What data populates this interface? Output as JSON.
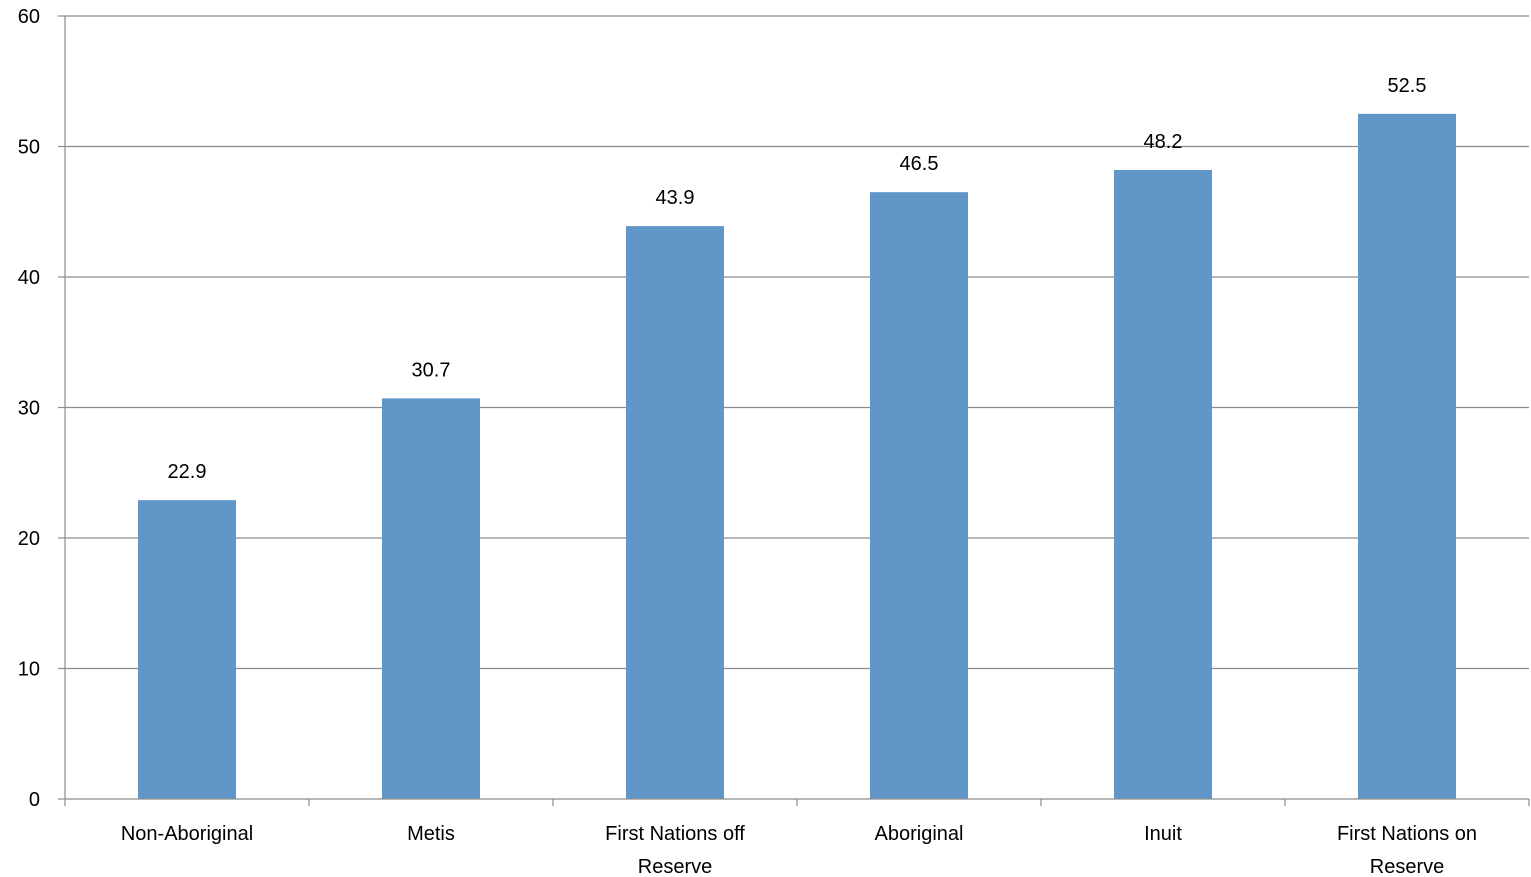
{
  "chart_data": {
    "type": "bar",
    "categories": [
      [
        "Non-Aboriginal"
      ],
      [
        "Metis"
      ],
      [
        "First Nations off",
        "Reserve"
      ],
      [
        "Aboriginal"
      ],
      [
        "Inuit"
      ],
      [
        "First Nations on",
        "Reserve"
      ]
    ],
    "values": [
      22.9,
      30.7,
      43.9,
      46.5,
      48.2,
      52.5
    ],
    "data_labels": [
      "22.9",
      "30.7",
      "43.9",
      "46.5",
      "48.2",
      "52.5"
    ],
    "yticks": [
      "0",
      "10",
      "20",
      "30",
      "40",
      "50",
      "60"
    ],
    "ylim": [
      0,
      60
    ],
    "grid": true,
    "bar_color": "#6196c8",
    "grid_color": "#8c8c8c"
  }
}
